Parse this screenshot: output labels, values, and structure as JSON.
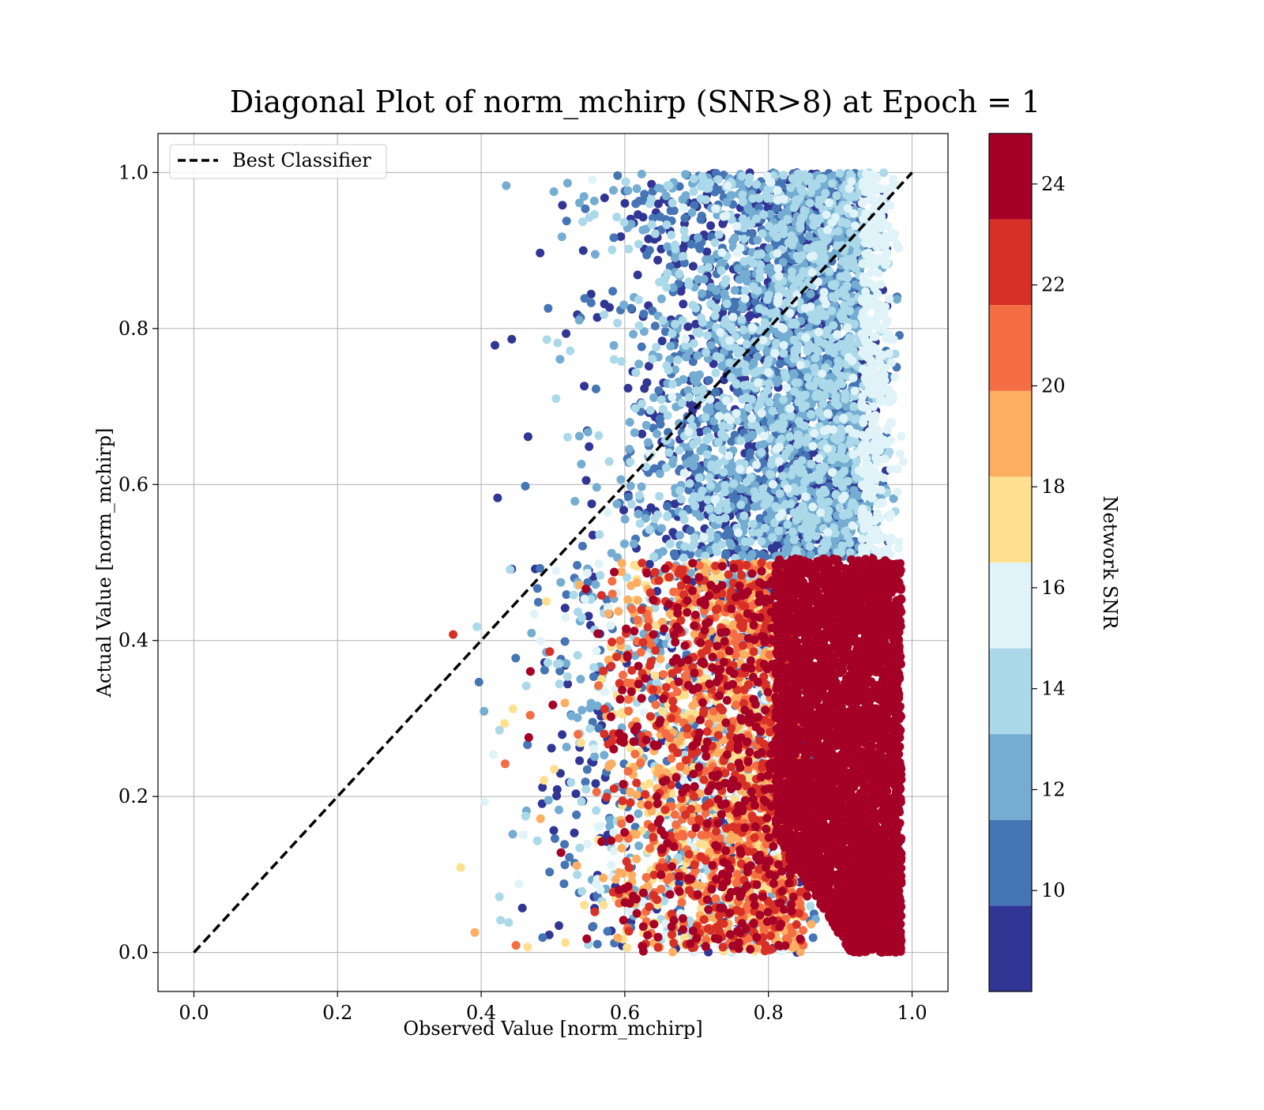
{
  "chart_data": {
    "type": "scatter",
    "title": "Diagonal Plot of norm_mchirp (SNR>8) at Epoch = 1",
    "xlabel": "Observed Value [norm_mchirp]",
    "ylabel": "Actual Value [norm_mchirp]",
    "xlim": [
      -0.05,
      1.05
    ],
    "ylim": [
      -0.05,
      1.05
    ],
    "xticks": [
      "0.0",
      "0.2",
      "0.4",
      "0.6",
      "0.8",
      "1.0"
    ],
    "yticks": [
      "0.0",
      "0.2",
      "0.4",
      "0.6",
      "0.8",
      "1.0"
    ],
    "grid": true,
    "legend": {
      "position": "top-left",
      "entries": [
        "Best Classifier"
      ]
    },
    "reference_line": {
      "label": "Best Classifier",
      "x": [
        0.0,
        1.0
      ],
      "y": [
        0.0,
        1.0
      ],
      "style": "dashed",
      "color": "#000000"
    },
    "colorbar": {
      "label": "Network SNR",
      "range": [
        8,
        25
      ],
      "ticks": [
        "10",
        "12",
        "14",
        "16",
        "18",
        "20",
        "22",
        "24"
      ],
      "tick_values": [
        10,
        12,
        14,
        16,
        18,
        20,
        22,
        24
      ],
      "boundaries": [
        8.0,
        9.7,
        11.4,
        13.1,
        14.8,
        16.5,
        18.2,
        19.9,
        21.6,
        23.3,
        25.0
      ],
      "colors": [
        "#313695",
        "#4575b4",
        "#74add1",
        "#abd9e9",
        "#e0f3f8",
        "#fee090",
        "#fdae61",
        "#f46d43",
        "#d73027",
        "#a50026"
      ]
    },
    "series": [
      {
        "kind": "points",
        "encoding": "x = observed, y = actual, color = network SNR",
        "regions": [
          {
            "x": [
              0.36,
              0.99
            ],
            "y": [
              0.5,
              1.0
            ],
            "snr": [
              8,
              17
            ],
            "description": "high actual values, blue tones"
          },
          {
            "x": [
              0.36,
              0.99
            ],
            "y": [
              0.0,
              0.5
            ],
            "snr": [
              8,
              25
            ],
            "description": "low actual values, mixed warm tones"
          },
          {
            "x": [
              0.81,
              0.98
            ],
            "y": [
              0.0,
              0.5
            ],
            "snr": [
              23,
              25
            ],
            "description": "dense dark red block"
          }
        ]
      }
    ]
  }
}
